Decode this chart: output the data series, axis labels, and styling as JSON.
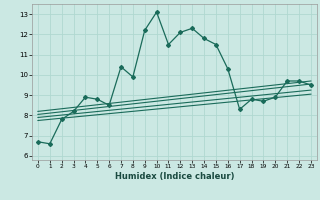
{
  "xlabel": "Humidex (Indice chaleur)",
  "bg_color": "#cbe8e3",
  "grid_color": "#b0d8d0",
  "line_color": "#1a6b5a",
  "xlim": [
    -0.5,
    23.5
  ],
  "ylim": [
    5.8,
    13.5
  ],
  "xticks": [
    0,
    1,
    2,
    3,
    4,
    5,
    6,
    7,
    8,
    9,
    10,
    11,
    12,
    13,
    14,
    15,
    16,
    17,
    18,
    19,
    20,
    21,
    22,
    23
  ],
  "yticks": [
    6,
    7,
    8,
    9,
    10,
    11,
    12,
    13
  ],
  "main_x": [
    0,
    1,
    2,
    3,
    4,
    5,
    6,
    7,
    8,
    9,
    10,
    11,
    12,
    13,
    14,
    15,
    16,
    17,
    18,
    19,
    20,
    21,
    22,
    23
  ],
  "main_y": [
    6.7,
    6.6,
    7.8,
    8.2,
    8.9,
    8.8,
    8.5,
    10.4,
    9.9,
    12.2,
    13.1,
    11.5,
    12.1,
    12.3,
    11.8,
    11.5,
    10.3,
    8.3,
    8.8,
    8.7,
    8.9,
    9.7,
    9.7,
    9.5
  ],
  "line1_x": [
    0,
    23
  ],
  "line1_y": [
    7.75,
    9.05
  ],
  "line2_x": [
    0,
    23
  ],
  "line2_y": [
    7.9,
    9.25
  ],
  "line3_x": [
    0,
    23
  ],
  "line3_y": [
    8.05,
    9.55
  ],
  "line4_x": [
    0,
    23
  ],
  "line4_y": [
    8.2,
    9.7
  ]
}
